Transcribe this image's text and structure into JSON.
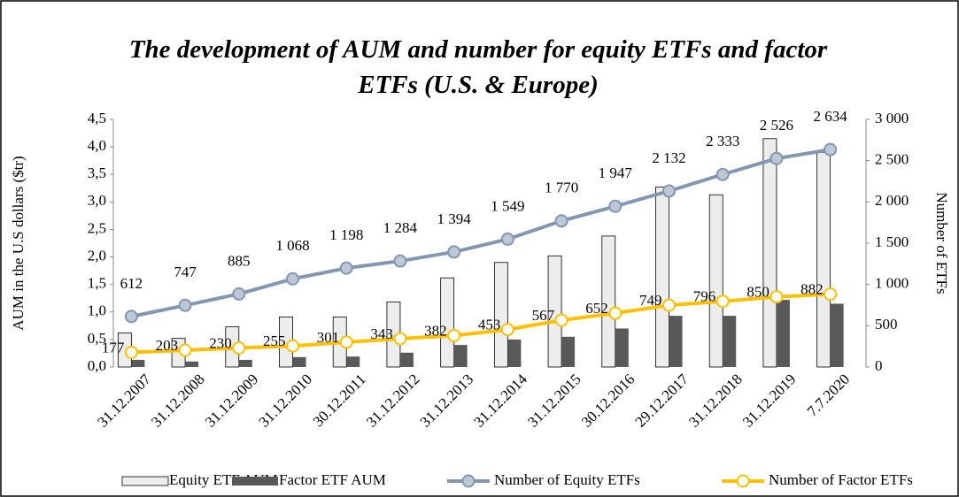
{
  "chart_data": {
    "type": "bar",
    "title": "The development of AUM and number for equity ETFs and factor ETFs (U.S. & Europe)",
    "y_label": "AUM in the U.S dollars ($tr)",
    "y2_label": "Number of ETFs",
    "categories": [
      "31.12.2007",
      "31.12.2008",
      "31.12.2009",
      "31.12.2010",
      "30.12.2011",
      "31.12.2012",
      "31.12.2013",
      "31.12.2014",
      "31.12.2015",
      "30.12.2016",
      "29.12.2017",
      "31.12.2018",
      "31.12.2019",
      "7.7.2020"
    ],
    "ylim": [
      0,
      4.5
    ],
    "yticks": [
      {
        "value": 0,
        "label": "0,0"
      },
      {
        "value": 0.5,
        "label": "0,5"
      },
      {
        "value": 1,
        "label": "1,0"
      },
      {
        "value": 1.5,
        "label": "1,5"
      },
      {
        "value": 2,
        "label": "2,0"
      },
      {
        "value": 2.5,
        "label": "2,5"
      },
      {
        "value": 3,
        "label": "3,0"
      },
      {
        "value": 3.5,
        "label": "3,5"
      },
      {
        "value": 4,
        "label": "4,0"
      },
      {
        "value": 4.5,
        "label": "4,5"
      }
    ],
    "y2lim": [
      0,
      3000
    ],
    "y2ticks": [
      0,
      500,
      {
        "value": 1000,
        "label": "1 000"
      },
      {
        "value": 1500,
        "label": "1 500"
      },
      {
        "value": 2000,
        "label": "2 000"
      },
      {
        "value": 2500,
        "label": "2 500"
      },
      {
        "value": 3000,
        "label": "3 000"
      }
    ],
    "series": [
      {
        "name": "Equity ETF AUM",
        "type": "bar",
        "color": "#ededed",
        "values": [
          0.62,
          0.52,
          0.73,
          0.91,
          0.91,
          1.18,
          1.62,
          1.9,
          2.02,
          2.38,
          3.27,
          3.13,
          4.15,
          3.9
        ]
      },
      {
        "name": "Factor ETF AUM",
        "type": "bar",
        "color": "#595959",
        "values": [
          0.13,
          0.1,
          0.13,
          0.18,
          0.19,
          0.26,
          0.4,
          0.5,
          0.55,
          0.7,
          0.93,
          0.93,
          1.22,
          1.15
        ]
      },
      {
        "name": "Number of Equity ETFs",
        "type": "line",
        "axis": "y2",
        "color": "#8497b0",
        "marker_fill": "#bdc7d6",
        "values": [
          612,
          747,
          885,
          1068,
          1198,
          1284,
          1394,
          1549,
          1770,
          1947,
          2132,
          2333,
          2526,
          2634
        ],
        "value_labels": [
          "612",
          "747",
          "885",
          "1 068",
          "1 198",
          "1 284",
          "1 394",
          "1 549",
          "1 770",
          "1 947",
          "2 132",
          "2 333",
          "2 526",
          "2 634"
        ]
      },
      {
        "name": "Number of Factor ETFs",
        "type": "line",
        "axis": "y2",
        "color": "#ffc000",
        "marker_fill": "#ffffff",
        "values": [
          177,
          203,
          230,
          255,
          301,
          343,
          382,
          453,
          567,
          652,
          749,
          796,
          850,
          882
        ]
      }
    ]
  }
}
